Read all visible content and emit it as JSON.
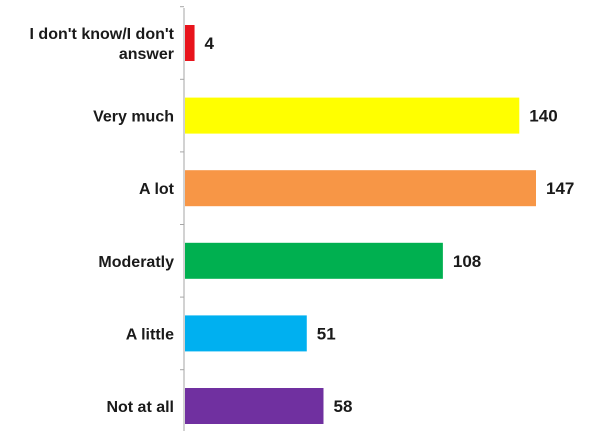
{
  "chart_data": {
    "type": "bar",
    "orientation": "horizontal",
    "title": "",
    "xlabel": "",
    "ylabel": "",
    "categories": [
      "I don't know/I don't answer",
      "Very much",
      "A lot",
      "Moderatly",
      "A little",
      "Not at all"
    ],
    "category_lines": [
      [
        "I don't know/I don't",
        "answer"
      ],
      [
        "Very much"
      ],
      [
        "A lot"
      ],
      [
        "Moderatly"
      ],
      [
        "A little"
      ],
      [
        "Not at all"
      ]
    ],
    "values": [
      4,
      140,
      147,
      108,
      51,
      58
    ],
    "colors": [
      "#e8141c",
      "#ffff00",
      "#f79646",
      "#00b050",
      "#00b0f0",
      "#7030a0"
    ],
    "xlim": [
      0,
      147
    ],
    "grid": false,
    "legend": "none",
    "axis_color": "#a6a6a6"
  }
}
